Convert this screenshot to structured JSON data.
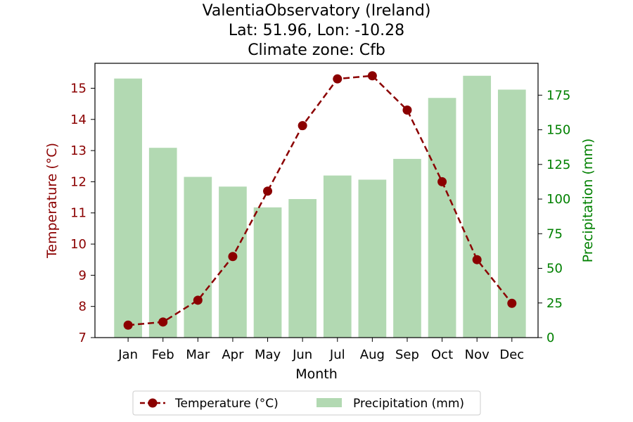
{
  "chart_data": {
    "type": "bar+line",
    "title_lines": [
      "ValentiaObservatory (Ireland)",
      "Lat: 51.96, Lon: -10.28",
      "Climate zone: Cfb"
    ],
    "xlabel": "Month",
    "categories": [
      "Jan",
      "Feb",
      "Mar",
      "Apr",
      "May",
      "Jun",
      "Jul",
      "Aug",
      "Sep",
      "Oct",
      "Nov",
      "Dec"
    ],
    "temperature": {
      "name": "Temperature (°C)",
      "axis_label": "Temperature (°C)",
      "values": [
        7.4,
        7.5,
        8.2,
        9.6,
        11.7,
        13.8,
        15.3,
        15.4,
        14.3,
        12.0,
        9.5,
        8.1
      ],
      "ylim": [
        7,
        15.8
      ],
      "ticks": [
        7,
        8,
        9,
        10,
        11,
        12,
        13,
        14,
        15
      ],
      "color": "#8b0000"
    },
    "precipitation": {
      "name": "Precipitation (mm)",
      "axis_label": "Precipitation (mm)",
      "values": [
        187,
        137,
        116,
        109,
        94,
        100,
        117,
        114,
        129,
        173,
        189,
        179
      ],
      "ylim": [
        0,
        198
      ],
      "ticks": [
        0,
        25,
        50,
        75,
        100,
        125,
        150,
        175
      ],
      "color": "#008000",
      "bar_color": "#b2d9b2"
    },
    "legend_position": "bottom-center",
    "grid": false
  }
}
